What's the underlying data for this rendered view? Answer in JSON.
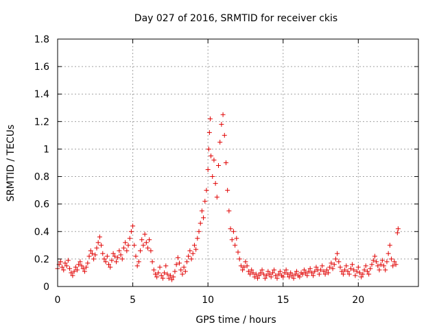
{
  "chart_data": {
    "type": "scatter",
    "title": "Day 027 of 2016, SRMTID for receiver ckis",
    "xlabel": "GPS time / hours",
    "ylabel": "SRMTID / TECUs",
    "xlim": [
      0,
      24
    ],
    "ylim": [
      0,
      1.8
    ],
    "xticks": [
      0,
      5,
      10,
      15,
      20
    ],
    "yticks": [
      0,
      0.2,
      0.4,
      0.6,
      0.8,
      1,
      1.2,
      1.4,
      1.6,
      1.8
    ],
    "ytick_labels": [
      "0",
      "0.2",
      "0.4",
      "0.6",
      "0.8",
      "1",
      "1.2",
      "1.4",
      "1.6",
      "1.8"
    ],
    "grid": true,
    "marker": "+",
    "color": "#e00000",
    "series": [
      {
        "name": "SRMTID",
        "points": [
          [
            0.0,
            0.13
          ],
          [
            0.1,
            0.16
          ],
          [
            0.2,
            0.18
          ],
          [
            0.3,
            0.14
          ],
          [
            0.4,
            0.12
          ],
          [
            0.5,
            0.17
          ],
          [
            0.6,
            0.15
          ],
          [
            0.7,
            0.19
          ],
          [
            0.8,
            0.13
          ],
          [
            0.9,
            0.1
          ],
          [
            1.0,
            0.08
          ],
          [
            1.1,
            0.11
          ],
          [
            1.2,
            0.14
          ],
          [
            1.3,
            0.12
          ],
          [
            1.4,
            0.16
          ],
          [
            1.5,
            0.18
          ],
          [
            1.6,
            0.15
          ],
          [
            1.7,
            0.13
          ],
          [
            1.8,
            0.11
          ],
          [
            1.9,
            0.14
          ],
          [
            2.0,
            0.17
          ],
          [
            2.1,
            0.22
          ],
          [
            2.2,
            0.26
          ],
          [
            2.3,
            0.24
          ],
          [
            2.4,
            0.2
          ],
          [
            2.5,
            0.23
          ],
          [
            2.6,
            0.28
          ],
          [
            2.7,
            0.32
          ],
          [
            2.8,
            0.36
          ],
          [
            2.9,
            0.3
          ],
          [
            3.0,
            0.24
          ],
          [
            3.1,
            0.2
          ],
          [
            3.2,
            0.18
          ],
          [
            3.3,
            0.22
          ],
          [
            3.4,
            0.16
          ],
          [
            3.5,
            0.14
          ],
          [
            3.6,
            0.19
          ],
          [
            3.7,
            0.24
          ],
          [
            3.8,
            0.22
          ],
          [
            3.9,
            0.18
          ],
          [
            4.0,
            0.21
          ],
          [
            4.1,
            0.26
          ],
          [
            4.2,
            0.23
          ],
          [
            4.3,
            0.2
          ],
          [
            4.4,
            0.28
          ],
          [
            4.5,
            0.32
          ],
          [
            4.6,
            0.26
          ],
          [
            4.7,
            0.3
          ],
          [
            4.8,
            0.35
          ],
          [
            4.9,
            0.4
          ],
          [
            5.0,
            0.44
          ],
          [
            5.1,
            0.3
          ],
          [
            5.2,
            0.22
          ],
          [
            5.3,
            0.15
          ],
          [
            5.4,
            0.18
          ],
          [
            5.5,
            0.26
          ],
          [
            5.6,
            0.34
          ],
          [
            5.7,
            0.3
          ],
          [
            5.8,
            0.38
          ],
          [
            5.9,
            0.32
          ],
          [
            6.0,
            0.28
          ],
          [
            6.1,
            0.34
          ],
          [
            6.2,
            0.26
          ],
          [
            6.3,
            0.18
          ],
          [
            6.4,
            0.12
          ],
          [
            6.5,
            0.09
          ],
          [
            6.6,
            0.07
          ],
          [
            6.7,
            0.1
          ],
          [
            6.8,
            0.14
          ],
          [
            6.9,
            0.08
          ],
          [
            7.0,
            0.06
          ],
          [
            7.1,
            0.1
          ],
          [
            7.2,
            0.15
          ],
          [
            7.3,
            0.09
          ],
          [
            7.4,
            0.06
          ],
          [
            7.5,
            0.08
          ],
          [
            7.6,
            0.05
          ],
          [
            7.7,
            0.07
          ],
          [
            7.8,
            0.11
          ],
          [
            7.9,
            0.16
          ],
          [
            8.0,
            0.21
          ],
          [
            8.1,
            0.17
          ],
          [
            8.2,
            0.12
          ],
          [
            8.3,
            0.09
          ],
          [
            8.4,
            0.14
          ],
          [
            8.5,
            0.11
          ],
          [
            8.6,
            0.18
          ],
          [
            8.7,
            0.22
          ],
          [
            8.8,
            0.26
          ],
          [
            8.9,
            0.2
          ],
          [
            9.0,
            0.24
          ],
          [
            9.1,
            0.3
          ],
          [
            9.2,
            0.27
          ],
          [
            9.3,
            0.35
          ],
          [
            9.4,
            0.4
          ],
          [
            9.5,
            0.46
          ],
          [
            9.6,
            0.55
          ],
          [
            9.7,
            0.5
          ],
          [
            9.8,
            0.62
          ],
          [
            9.9,
            0.7
          ],
          [
            10.0,
            0.85
          ],
          [
            10.05,
            1.0
          ],
          [
            10.1,
            1.12
          ],
          [
            10.15,
            1.22
          ],
          [
            10.2,
            0.95
          ],
          [
            10.3,
            0.8
          ],
          [
            10.4,
            0.92
          ],
          [
            10.5,
            0.75
          ],
          [
            10.6,
            0.65
          ],
          [
            10.7,
            0.88
          ],
          [
            10.8,
            1.05
          ],
          [
            10.9,
            1.18
          ],
          [
            11.0,
            1.25
          ],
          [
            11.1,
            1.1
          ],
          [
            11.2,
            0.9
          ],
          [
            11.3,
            0.7
          ],
          [
            11.4,
            0.55
          ],
          [
            11.5,
            0.42
          ],
          [
            11.6,
            0.34
          ],
          [
            11.7,
            0.4
          ],
          [
            11.8,
            0.3
          ],
          [
            11.9,
            0.35
          ],
          [
            12.0,
            0.25
          ],
          [
            12.1,
            0.2
          ],
          [
            12.2,
            0.15
          ],
          [
            12.3,
            0.12
          ],
          [
            12.4,
            0.14
          ],
          [
            12.5,
            0.18
          ],
          [
            12.6,
            0.15
          ],
          [
            12.7,
            0.11
          ],
          [
            12.8,
            0.09
          ],
          [
            12.9,
            0.12
          ],
          [
            13.0,
            0.1
          ],
          [
            13.1,
            0.07
          ],
          [
            13.2,
            0.09
          ],
          [
            13.3,
            0.06
          ],
          [
            13.4,
            0.08
          ],
          [
            13.5,
            0.1
          ],
          [
            13.6,
            0.12
          ],
          [
            13.7,
            0.09
          ],
          [
            13.8,
            0.06
          ],
          [
            13.9,
            0.08
          ],
          [
            14.0,
            0.11
          ],
          [
            14.1,
            0.09
          ],
          [
            14.2,
            0.07
          ],
          [
            14.3,
            0.1
          ],
          [
            14.4,
            0.12
          ],
          [
            14.5,
            0.08
          ],
          [
            14.6,
            0.06
          ],
          [
            14.7,
            0.09
          ],
          [
            14.8,
            0.11
          ],
          [
            14.9,
            0.08
          ],
          [
            15.0,
            0.07
          ],
          [
            15.1,
            0.1
          ],
          [
            15.2,
            0.12
          ],
          [
            15.3,
            0.09
          ],
          [
            15.4,
            0.07
          ],
          [
            15.5,
            0.1
          ],
          [
            15.6,
            0.08
          ],
          [
            15.7,
            0.06
          ],
          [
            15.8,
            0.09
          ],
          [
            15.9,
            0.11
          ],
          [
            16.0,
            0.08
          ],
          [
            16.1,
            0.07
          ],
          [
            16.2,
            0.1
          ],
          [
            16.3,
            0.09
          ],
          [
            16.4,
            0.12
          ],
          [
            16.5,
            0.1
          ],
          [
            16.6,
            0.08
          ],
          [
            16.7,
            0.11
          ],
          [
            16.8,
            0.13
          ],
          [
            16.9,
            0.1
          ],
          [
            17.0,
            0.08
          ],
          [
            17.1,
            0.11
          ],
          [
            17.2,
            0.14
          ],
          [
            17.3,
            0.12
          ],
          [
            17.4,
            0.09
          ],
          [
            17.5,
            0.12
          ],
          [
            17.6,
            0.15
          ],
          [
            17.7,
            0.11
          ],
          [
            17.8,
            0.09
          ],
          [
            17.9,
            0.12
          ],
          [
            18.0,
            0.1
          ],
          [
            18.1,
            0.14
          ],
          [
            18.2,
            0.17
          ],
          [
            18.3,
            0.13
          ],
          [
            18.4,
            0.16
          ],
          [
            18.5,
            0.2
          ],
          [
            18.6,
            0.24
          ],
          [
            18.7,
            0.18
          ],
          [
            18.8,
            0.14
          ],
          [
            18.9,
            0.11
          ],
          [
            19.0,
            0.09
          ],
          [
            19.1,
            0.12
          ],
          [
            19.2,
            0.15
          ],
          [
            19.3,
            0.11
          ],
          [
            19.4,
            0.09
          ],
          [
            19.5,
            0.13
          ],
          [
            19.6,
            0.16
          ],
          [
            19.7,
            0.12
          ],
          [
            19.8,
            0.08
          ],
          [
            19.9,
            0.11
          ],
          [
            20.0,
            0.14
          ],
          [
            20.1,
            0.1
          ],
          [
            20.2,
            0.07
          ],
          [
            20.3,
            0.09
          ],
          [
            20.4,
            0.12
          ],
          [
            20.5,
            0.15
          ],
          [
            20.6,
            0.11
          ],
          [
            20.7,
            0.09
          ],
          [
            20.8,
            0.13
          ],
          [
            20.9,
            0.16
          ],
          [
            21.0,
            0.19
          ],
          [
            21.1,
            0.22
          ],
          [
            21.2,
            0.18
          ],
          [
            21.3,
            0.15
          ],
          [
            21.4,
            0.12
          ],
          [
            21.5,
            0.16
          ],
          [
            21.6,
            0.19
          ],
          [
            21.7,
            0.15
          ],
          [
            21.8,
            0.12
          ],
          [
            21.9,
            0.18
          ],
          [
            22.0,
            0.24
          ],
          [
            22.1,
            0.3
          ],
          [
            22.2,
            0.2
          ],
          [
            22.3,
            0.15
          ],
          [
            22.4,
            0.18
          ],
          [
            22.5,
            0.16
          ],
          [
            22.6,
            0.39
          ],
          [
            22.65,
            0.42
          ]
        ]
      }
    ],
    "annotations": []
  }
}
